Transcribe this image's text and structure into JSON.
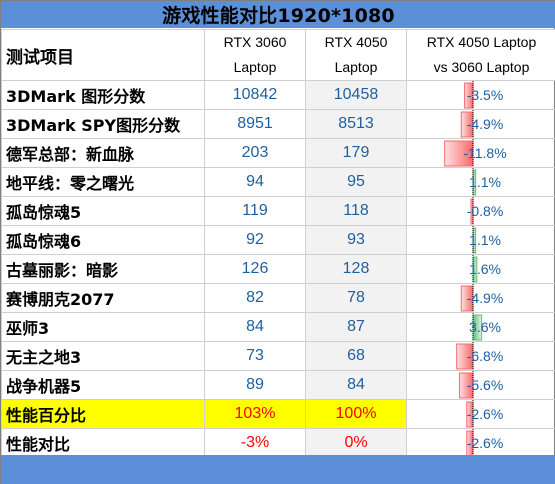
{
  "title": "游戏性能对比1920*1080",
  "header": {
    "item_label": "测试项目",
    "col1": [
      "RTX 3060",
      "Laptop"
    ],
    "col2": [
      "RTX 4050",
      "Laptop"
    ],
    "col3": [
      "RTX 4050 Laptop",
      "vs 3060 Laptop"
    ]
  },
  "colors": {
    "header_bg": "#5b8fd8",
    "highlight": "#ffff00",
    "value_text": "#1f5f9e",
    "negative_bar": "#f8696b",
    "positive_bar": "#63be7b",
    "red_text": "#ff0000"
  },
  "rows": [
    {
      "name": "3DMark 图形分数",
      "v3060": "10842",
      "v4050": "10458",
      "diff": "-3.5%"
    },
    {
      "name": "3DMark SPY图形分数",
      "v3060": "8951",
      "v4050": "8513",
      "diff": "-4.9%"
    },
    {
      "name": "德军总部：新血脉",
      "v3060": "203",
      "v4050": "179",
      "diff": "-11.8%"
    },
    {
      "name": "地平线：零之曙光",
      "v3060": "94",
      "v4050": "95",
      "diff": "1.1%"
    },
    {
      "name": "孤岛惊魂5",
      "v3060": "119",
      "v4050": "118",
      "diff": "-0.8%"
    },
    {
      "name": "孤岛惊魂6",
      "v3060": "92",
      "v4050": "93",
      "diff": "1.1%"
    },
    {
      "name": "古墓丽影：暗影",
      "v3060": "126",
      "v4050": "128",
      "diff": "1.6%"
    },
    {
      "name": "赛博朋克2077",
      "v3060": "82",
      "v4050": "78",
      "diff": "-4.9%"
    },
    {
      "name": "巫师3",
      "v3060": "84",
      "v4050": "87",
      "diff": "3.6%"
    },
    {
      "name": "无主之地3",
      "v3060": "73",
      "v4050": "68",
      "diff": "-6.8%"
    },
    {
      "name": "战争机器5",
      "v3060": "89",
      "v4050": "84",
      "diff": "-5.6%"
    },
    {
      "name": "性能百分比",
      "v3060": "103%",
      "v4050": "100%",
      "diff": "-2.6%"
    },
    {
      "name": "性能对比",
      "v3060": "-3%",
      "v4050": "0%",
      "diff": "-2.6%"
    }
  ],
  "chart_data": {
    "type": "table",
    "title": "游戏性能对比1920*1080",
    "columns": [
      "测试项目",
      "RTX 3060 Laptop",
      "RTX 4050 Laptop",
      "RTX 4050 Laptop vs 3060 Laptop"
    ],
    "categories": [
      "3DMark 图形分数",
      "3DMark SPY图形分数",
      "德军总部：新血脉",
      "地平线：零之曙光",
      "孤岛惊魂5",
      "孤岛惊魂6",
      "古墓丽影：暗影",
      "赛博朋克2077",
      "巫师3",
      "无主之地3",
      "战争机器5",
      "性能百分比",
      "性能对比"
    ],
    "series": [
      {
        "name": "RTX 3060 Laptop",
        "values": [
          10842,
          8951,
          203,
          94,
          119,
          92,
          126,
          82,
          84,
          73,
          89,
          103,
          -3
        ]
      },
      {
        "name": "RTX 4050 Laptop",
        "values": [
          10458,
          8513,
          179,
          95,
          118,
          93,
          128,
          78,
          87,
          68,
          84,
          100,
          0
        ]
      },
      {
        "name": "RTX 4050 Laptop vs 3060 Laptop",
        "values": [
          -3.5,
          -4.9,
          -11.8,
          1.1,
          -0.8,
          1.1,
          1.6,
          -4.9,
          3.6,
          -6.8,
          -5.6,
          -2.6,
          -2.6
        ]
      }
    ],
    "diff_range": [
      -11.8,
      3.6
    ]
  }
}
